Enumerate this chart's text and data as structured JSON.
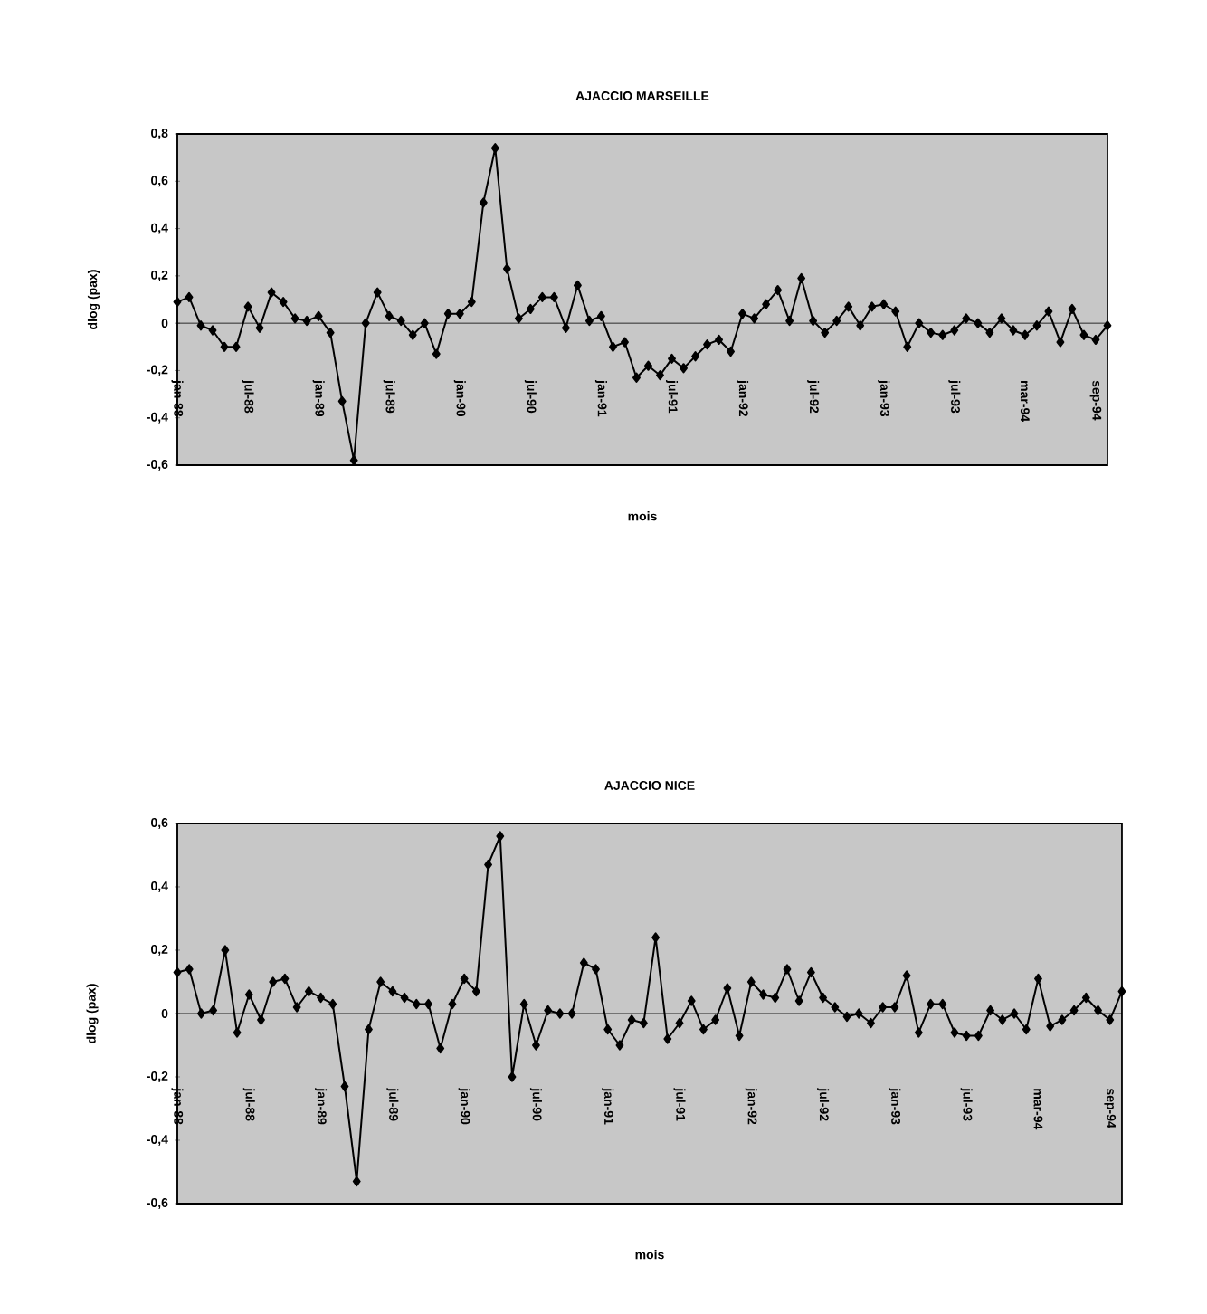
{
  "chart_data": [
    {
      "type": "line",
      "title": "AJACCIO  MARSEILLE",
      "xlabel": "mois",
      "ylabel": "dlog (pax)",
      "color": "#000000",
      "marker": "diamond",
      "categories": [
        "jan-88",
        null,
        null,
        null,
        null,
        null,
        "jul-88",
        null,
        null,
        null,
        null,
        null,
        "jan-89",
        null,
        null,
        null,
        null,
        null,
        "jul-89",
        null,
        null,
        null,
        null,
        null,
        "jan-90",
        null,
        null,
        null,
        null,
        null,
        "jul-90",
        null,
        null,
        null,
        null,
        null,
        "jan-91",
        null,
        null,
        null,
        null,
        null,
        "jul-91",
        null,
        null,
        null,
        null,
        null,
        "jan-92",
        null,
        null,
        null,
        null,
        null,
        "jul-92",
        null,
        null,
        null,
        null,
        null,
        "jan-93",
        null,
        null,
        null,
        null,
        null,
        "jul-93",
        null,
        null,
        null,
        null,
        null,
        "mar-94",
        null,
        null,
        null,
        null,
        null,
        "sep-94",
        null
      ],
      "values": [
        0.09,
        0.11,
        -0.01,
        -0.03,
        -0.1,
        -0.1,
        0.07,
        -0.02,
        0.13,
        0.09,
        0.02,
        0.01,
        0.03,
        -0.04,
        -0.33,
        -0.58,
        0.0,
        0.13,
        0.03,
        0.01,
        -0.05,
        0.0,
        -0.13,
        0.04,
        0.04,
        0.09,
        0.51,
        0.74,
        0.23,
        0.02,
        0.06,
        0.11,
        0.11,
        -0.02,
        0.16,
        0.01,
        0.03,
        -0.1,
        -0.08,
        -0.23,
        -0.18,
        -0.22,
        -0.15,
        -0.19,
        -0.14,
        -0.09,
        -0.07,
        -0.12,
        0.04,
        0.02,
        0.08,
        0.14,
        0.01,
        0.19,
        0.01,
        -0.04,
        0.01,
        0.07,
        -0.01,
        0.07,
        0.08,
        0.05,
        -0.1,
        0.0,
        -0.04,
        -0.05,
        -0.03,
        0.02,
        0.0,
        -0.04,
        0.02,
        -0.03,
        -0.05,
        -0.01,
        0.05,
        -0.08,
        0.06,
        -0.05,
        -0.07,
        -0.01
      ],
      "ylim": [
        -0.6,
        0.8
      ],
      "yticks": [
        {
          "value": -0.6,
          "label": "-0,6"
        },
        {
          "value": -0.4,
          "label": "-0,4"
        },
        {
          "value": -0.2,
          "label": "-0,2"
        },
        0,
        {
          "value": 0.2,
          "label": "0,2"
        },
        {
          "value": 0.4,
          "label": "0,4"
        },
        {
          "value": 0.6,
          "label": "0,6"
        },
        {
          "value": 0.8,
          "label": "0,8"
        }
      ]
    },
    {
      "type": "line",
      "title": "AJACCIO  NICE",
      "xlabel": "mois",
      "ylabel": "dlog (pax)",
      "color": "#000000",
      "marker": "diamond",
      "categories": [
        "jan-88",
        null,
        null,
        null,
        null,
        null,
        "jul-88",
        null,
        null,
        null,
        null,
        null,
        "jan-89",
        null,
        null,
        null,
        null,
        null,
        "jul-89",
        null,
        null,
        null,
        null,
        null,
        "jan-90",
        null,
        null,
        null,
        null,
        null,
        "jul-90",
        null,
        null,
        null,
        null,
        null,
        "jan-91",
        null,
        null,
        null,
        null,
        null,
        "jul-91",
        null,
        null,
        null,
        null,
        null,
        "jan-92",
        null,
        null,
        null,
        null,
        null,
        "jul-92",
        null,
        null,
        null,
        null,
        null,
        "jan-93",
        null,
        null,
        null,
        null,
        null,
        "jul-93",
        null,
        null,
        null,
        null,
        null,
        "mar-94",
        null,
        null,
        null,
        null,
        null,
        "sep-94",
        null
      ],
      "values": [
        0.13,
        0.14,
        0.0,
        0.01,
        0.2,
        -0.06,
        0.06,
        -0.02,
        0.1,
        0.11,
        0.02,
        0.07,
        0.05,
        0.03,
        -0.23,
        -0.53,
        -0.05,
        0.1,
        0.07,
        0.05,
        0.03,
        0.03,
        -0.11,
        0.03,
        0.11,
        0.07,
        0.47,
        0.56,
        -0.2,
        0.03,
        -0.1,
        0.01,
        0.0,
        0.0,
        0.16,
        0.14,
        -0.05,
        -0.1,
        -0.02,
        -0.03,
        0.24,
        -0.08,
        -0.03,
        0.04,
        -0.05,
        -0.02,
        0.08,
        -0.07,
        0.1,
        0.06,
        0.05,
        0.14,
        0.04,
        0.13,
        0.05,
        0.02,
        -0.01,
        0.0,
        -0.03,
        0.02,
        0.02,
        0.12,
        -0.06,
        0.03,
        0.03,
        -0.06,
        -0.07,
        -0.07,
        0.01,
        -0.02,
        0.0,
        -0.05,
        0.11,
        -0.04,
        -0.02,
        0.01,
        0.05,
        0.01,
        -0.02,
        0.07
      ],
      "ylim": [
        -0.6,
        0.6
      ],
      "yticks": [
        {
          "value": -0.6,
          "label": "-0,6"
        },
        {
          "value": -0.4,
          "label": "-0,4"
        },
        {
          "value": -0.2,
          "label": "-0,2"
        },
        0,
        {
          "value": 0.2,
          "label": "0,2"
        },
        {
          "value": 0.4,
          "label": "0,4"
        },
        {
          "value": 0.6,
          "label": "0,6"
        }
      ]
    }
  ]
}
